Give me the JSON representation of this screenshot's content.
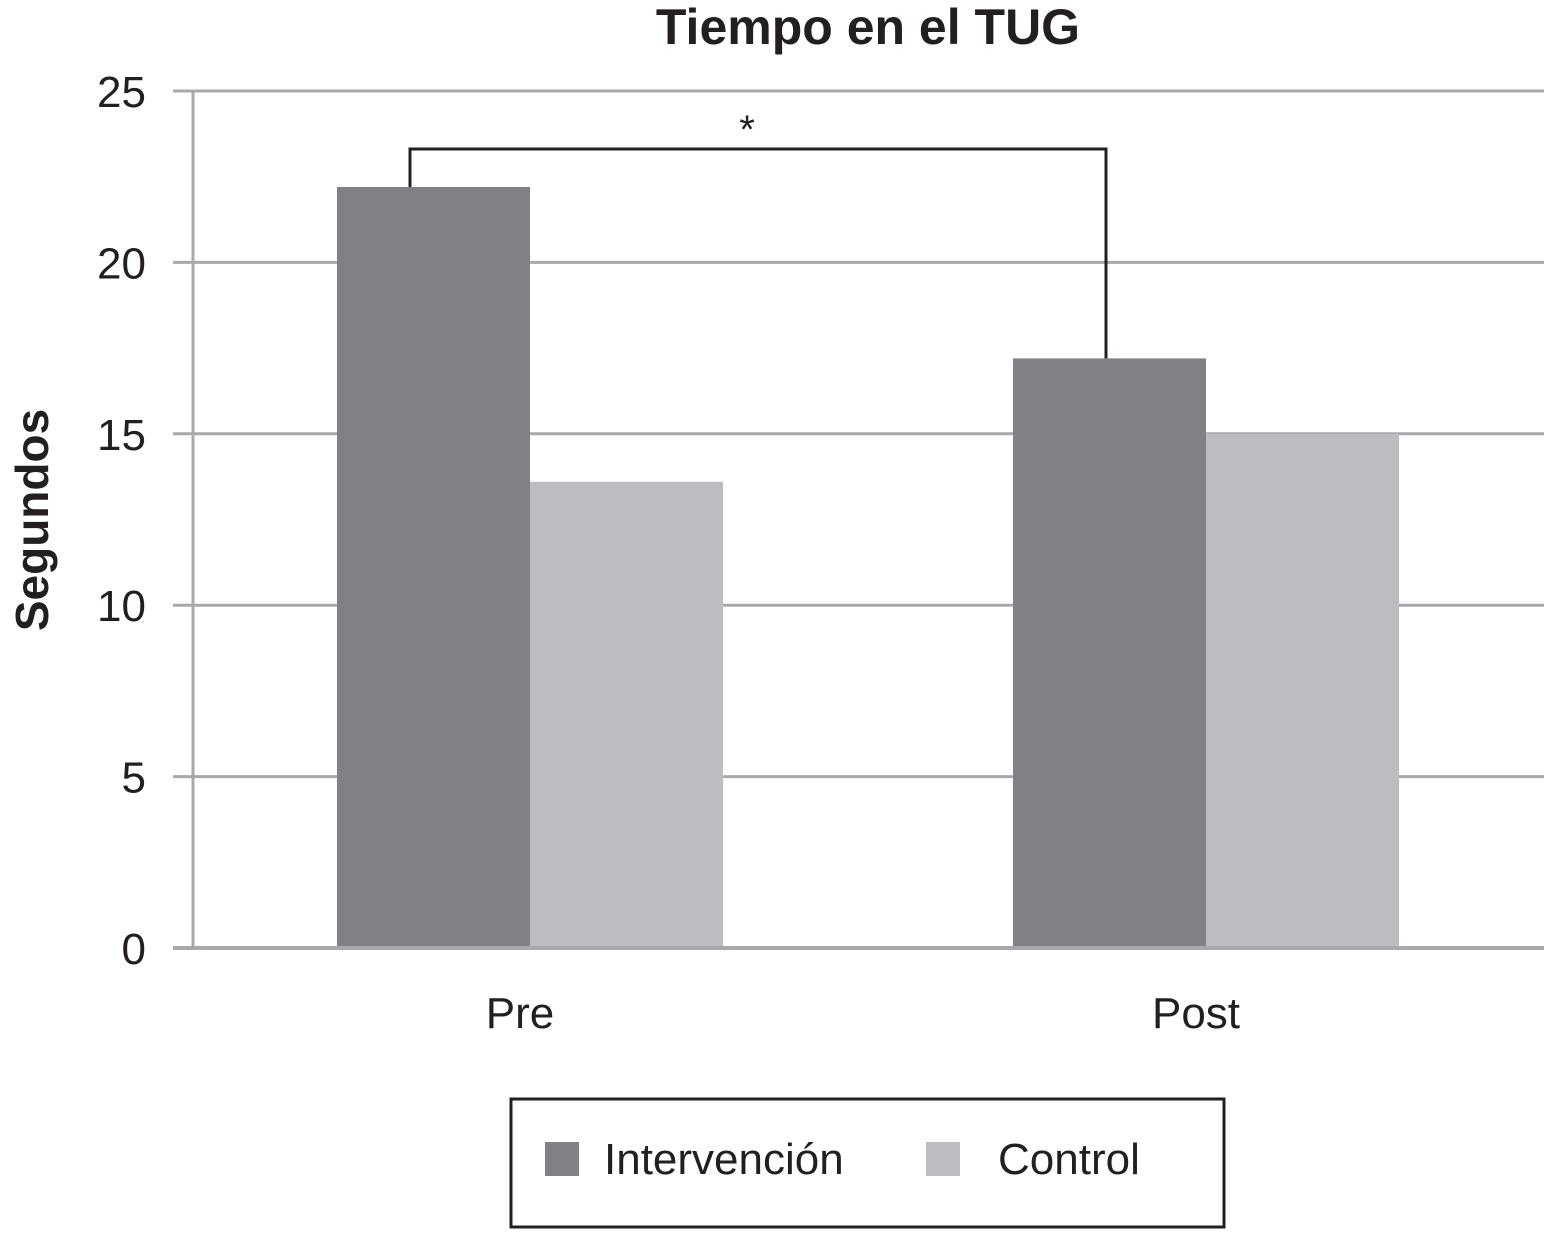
{
  "chart_data": {
    "type": "bar",
    "title": "Tiempo en el TUG",
    "xlabel": "",
    "ylabel": "Segundos",
    "categories": [
      "Pre",
      "Post"
    ],
    "series": [
      {
        "name": "Intervención",
        "values": [
          22.2,
          17.2
        ],
        "color": "#808184"
      },
      {
        "name": "Control",
        "values": [
          13.6,
          15.0
        ],
        "color": "#bcbdc0"
      }
    ],
    "ylim": [
      0,
      25
    ],
    "yticks": [
      "0",
      "5",
      "10",
      "15",
      "20",
      "25"
    ],
    "grid": true,
    "legend": "bottom-center",
    "annotations": [
      {
        "text": "*",
        "type": "significance-bracket",
        "from": "Pre · Intervención",
        "to": "Post · Intervención"
      }
    ]
  }
}
